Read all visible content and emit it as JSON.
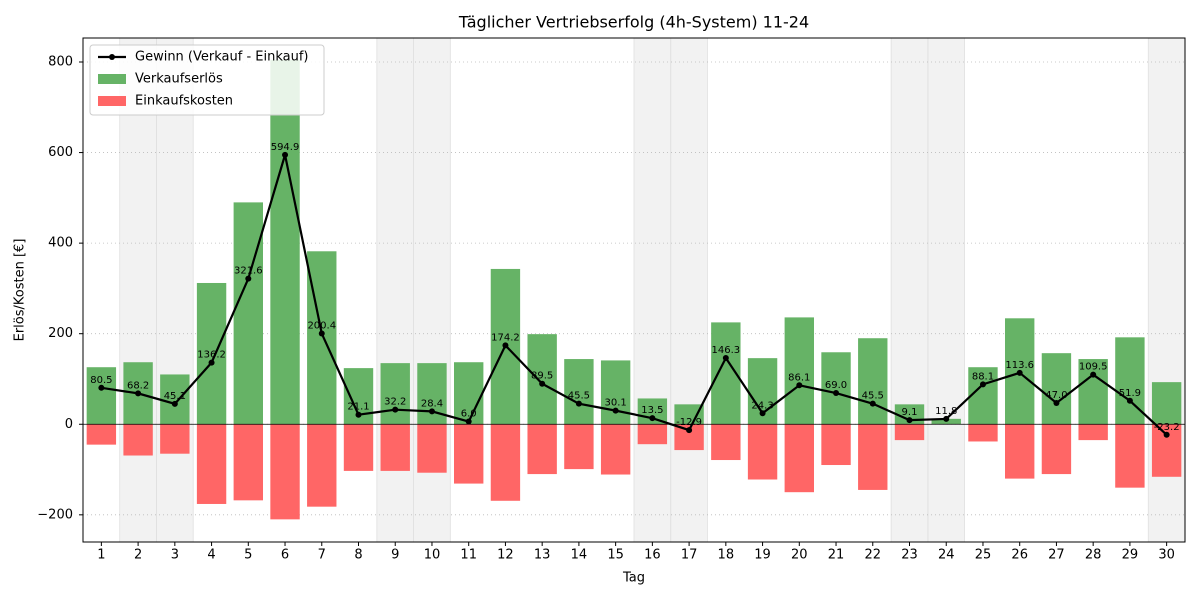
{
  "chart_data": {
    "type": "bar",
    "title": "Täglicher Vertriebserfolg (4h-System) 11-24",
    "x_label": "Tag",
    "y_label": "Erlös/Kosten [€]",
    "categories": [
      1,
      2,
      3,
      4,
      5,
      6,
      7,
      8,
      9,
      10,
      11,
      12,
      13,
      14,
      15,
      16,
      17,
      18,
      19,
      20,
      21,
      22,
      23,
      24,
      25,
      26,
      27,
      28,
      29,
      30
    ],
    "highlight_days": [
      2,
      3,
      9,
      10,
      16,
      17,
      23,
      24,
      30
    ],
    "series": [
      {
        "name": "Gewinn (Verkauf - Einkauf)",
        "type": "line",
        "color": "#000000",
        "values": [
          80.5,
          68.2,
          45.1,
          136.2,
          321.6,
          594.9,
          200.4,
          21.1,
          32.2,
          28.4,
          6.0,
          174.2,
          89.5,
          45.5,
          30.1,
          13.5,
          -12.9,
          146.3,
          24.3,
          86.1,
          69.0,
          45.5,
          9.1,
          11.8,
          88.1,
          113.6,
          47.0,
          109.5,
          51.9,
          -23.2
        ],
        "value_labels": [
          "80.5",
          "68.2",
          "45.1",
          "136.2",
          "321.6",
          "594.9",
          "200.4",
          "21.1",
          "32.2",
          "28.4",
          "6.0",
          "174.2",
          "89.5",
          "45.5",
          "30.1",
          "13.5",
          "-12.9",
          "146.3",
          "24.3",
          "86.1",
          "69.0",
          "45.5",
          "9.1",
          "11.8",
          "88.1",
          "113.6",
          "47.0",
          "109.5",
          "51.9",
          "-23.2"
        ]
      },
      {
        "name": "Verkaufserlös",
        "type": "bar",
        "color": "#66b366",
        "values": [
          126,
          137,
          110,
          312,
          490,
          805,
          382,
          124,
          135,
          135,
          137,
          343,
          199,
          144,
          141,
          57,
          44,
          225,
          146,
          236,
          159,
          190,
          44,
          12,
          126,
          234,
          157,
          144,
          192,
          93
        ]
      },
      {
        "name": "Einkaufskosten",
        "type": "bar",
        "color": "#ff6666",
        "values": [
          -45,
          -69,
          -65,
          -176,
          -168,
          -210,
          -182,
          -103,
          -103,
          -107,
          -131,
          -169,
          -110,
          -99,
          -111,
          -44,
          -57,
          -79,
          -122,
          -150,
          -90,
          -145,
          -35,
          0,
          -38,
          -120,
          -110,
          -35,
          -140,
          -116
        ]
      }
    ],
    "ylim": [
      -260,
      853
    ],
    "yticks": [
      {
        "value": -200,
        "label": "−200"
      },
      0,
      200,
      400,
      600,
      800
    ],
    "grid": true,
    "legend": "upper left"
  }
}
